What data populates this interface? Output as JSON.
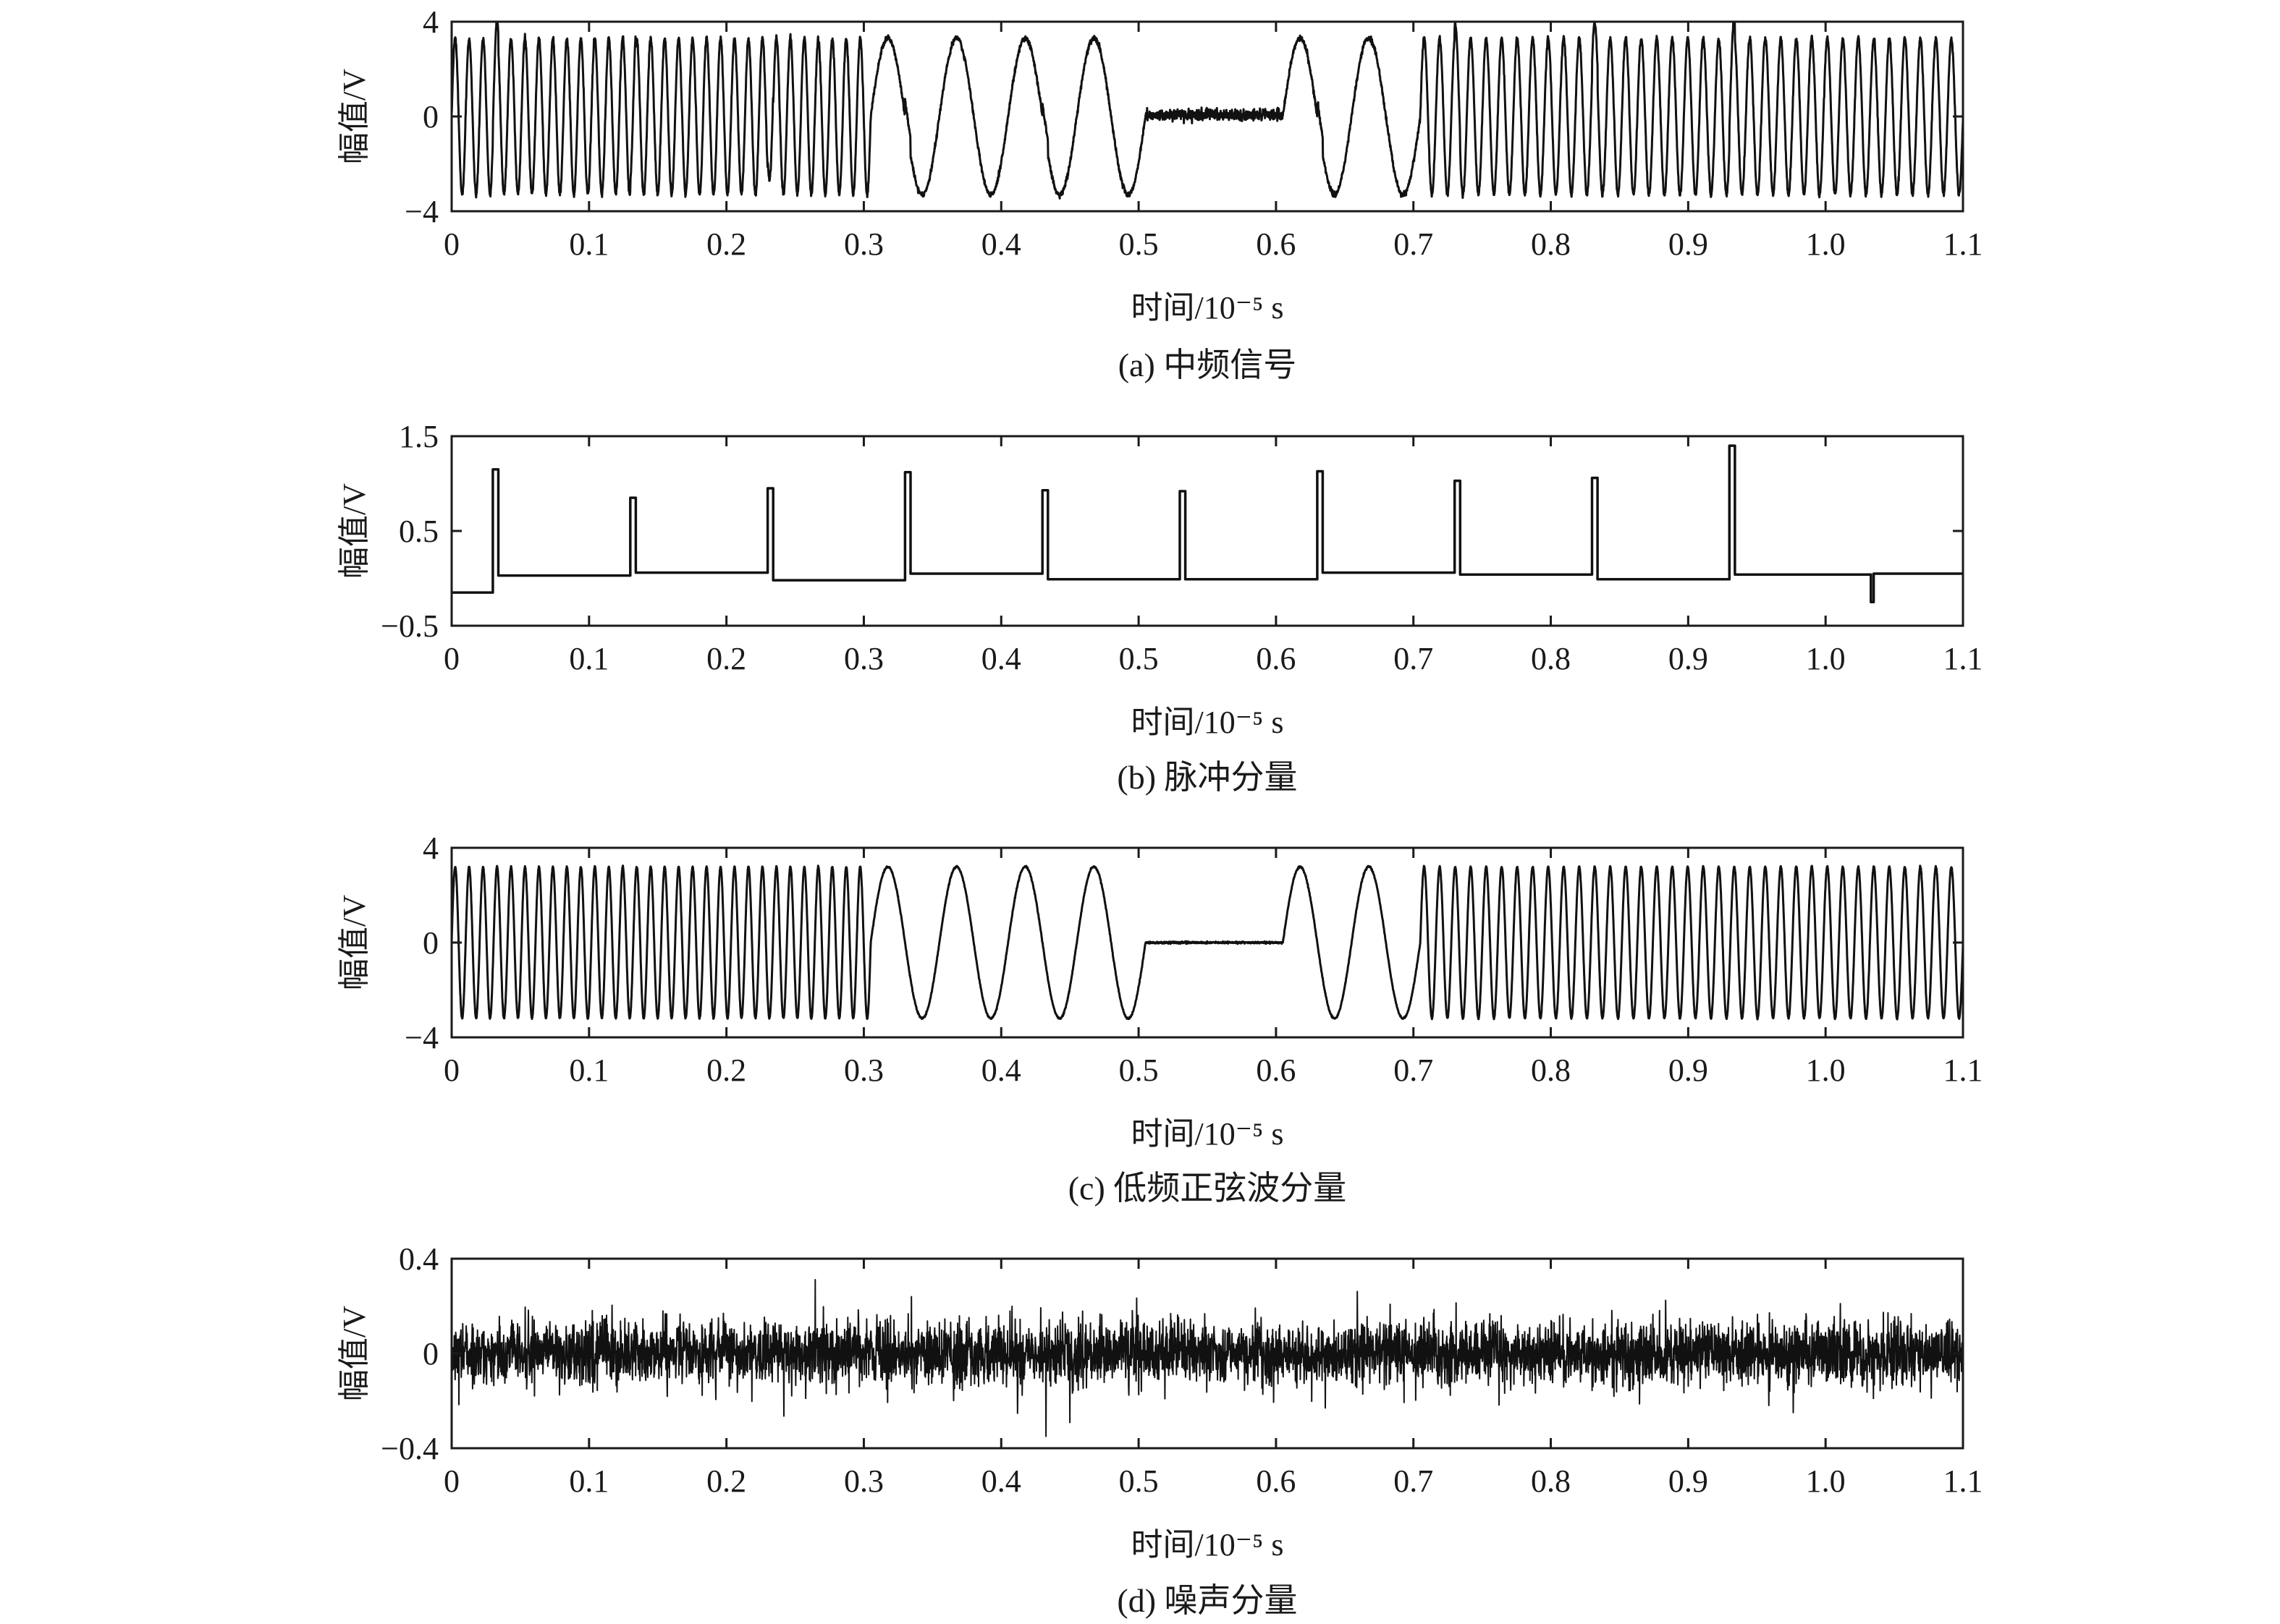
{
  "chart_data": [
    {
      "type": "line",
      "caption": "(a) 中频信号",
      "xlabel": "时间/10⁻⁵ s",
      "ylabel": "幅值/V",
      "xlim": [
        0,
        1.1
      ],
      "ylim": [
        -4,
        4
      ],
      "xticks": [
        "0",
        "0.1",
        "0.2",
        "0.3",
        "0.4",
        "0.5",
        "0.6",
        "0.7",
        "0.8",
        "0.9",
        "1.0",
        "1.1"
      ],
      "yticks": [
        {
          "value": 4,
          "label": "4"
        },
        {
          "value": 0,
          "label": "0"
        },
        {
          "value": -4,
          "label": "−4"
        }
      ],
      "series": [
        {
          "signal": "composite",
          "amplitude": 3.3,
          "silent_interval": [
            0.505,
            0.605
          ],
          "silent_level": 0.05,
          "segments": [
            {
              "start": 0.0,
              "end": 0.305,
              "cycles": 30
            },
            {
              "start": 0.305,
              "end": 0.505,
              "cycles": 4
            },
            {
              "start": 0.605,
              "end": 0.705,
              "cycles": 2
            },
            {
              "start": 0.705,
              "end": 1.1,
              "cycles": 35
            }
          ],
          "pulse_times": [
            0.03,
            0.13,
            0.23,
            0.33,
            0.43,
            0.53,
            0.63,
            0.73,
            0.83,
            0.93
          ],
          "pulse_peaks": [
            1.15,
            0.85,
            0.95,
            1.12,
            0.93,
            0.92,
            1.13,
            1.03,
            1.06,
            1.4
          ],
          "noise_amplitude": 0.12
        }
      ]
    },
    {
      "type": "line",
      "caption": "(b) 脉冲分量",
      "xlabel": "时间/10⁻⁵ s",
      "ylabel": "幅值/V",
      "xlim": [
        0,
        1.1
      ],
      "ylim": [
        -0.5,
        1.5
      ],
      "xticks": [
        "0",
        "0.1",
        "0.2",
        "0.3",
        "0.4",
        "0.5",
        "0.6",
        "0.7",
        "0.8",
        "0.9",
        "1.0",
        "1.1"
      ],
      "yticks": [
        {
          "value": 1.5,
          "label": "1.5"
        },
        {
          "value": 0.5,
          "label": "0.5"
        },
        {
          "value": -0.5,
          "label": "−0.5"
        }
      ],
      "series": [
        {
          "signal": "pulses",
          "initial_level": -0.15,
          "pulse_times": [
            0.03,
            0.13,
            0.23,
            0.33,
            0.43,
            0.53,
            0.63,
            0.73,
            0.83,
            0.93
          ],
          "pulse_peaks": [
            1.15,
            0.85,
            0.95,
            1.12,
            0.93,
            0.92,
            1.13,
            1.03,
            1.06,
            1.4
          ],
          "baseline_levels": [
            0.03,
            0.06,
            -0.02,
            0.05,
            -0.01,
            -0.01,
            0.06,
            0.04,
            -0.01,
            0.04
          ],
          "dip": {
            "x": 1.033,
            "y": -0.25
          },
          "final_level": 0.05
        }
      ]
    },
    {
      "type": "line",
      "caption": "(c) 低频正弦波分量",
      "xlabel": "时间/10⁻⁵ s",
      "ylabel": "幅值/V",
      "xlim": [
        0,
        1.1
      ],
      "ylim": [
        -4,
        4
      ],
      "xticks": [
        "0",
        "0.1",
        "0.2",
        "0.3",
        "0.4",
        "0.5",
        "0.6",
        "0.7",
        "0.8",
        "0.9",
        "1.0",
        "1.1"
      ],
      "yticks": [
        {
          "value": 4,
          "label": "4"
        },
        {
          "value": 0,
          "label": "0"
        },
        {
          "value": -4,
          "label": "−4"
        }
      ],
      "series": [
        {
          "signal": "sine",
          "amplitude": 3.2,
          "silent_interval": [
            0.505,
            0.605
          ],
          "silent_level": 0.0,
          "segments": [
            {
              "start": 0.0,
              "end": 0.305,
              "cycles": 30
            },
            {
              "start": 0.305,
              "end": 0.505,
              "cycles": 4
            },
            {
              "start": 0.605,
              "end": 0.705,
              "cycles": 2
            },
            {
              "start": 0.705,
              "end": 1.1,
              "cycles": 35
            }
          ],
          "noise_amplitude": 0.02
        }
      ]
    },
    {
      "type": "line",
      "caption": "(d) 噪声分量",
      "xlabel": "时间/10⁻⁵ s",
      "ylabel": "幅值/V",
      "xlim": [
        0,
        1.1
      ],
      "ylim": [
        -0.4,
        0.4
      ],
      "xticks": [
        "0",
        "0.1",
        "0.2",
        "0.3",
        "0.4",
        "0.5",
        "0.6",
        "0.7",
        "0.8",
        "0.9",
        "1.0",
        "1.1"
      ],
      "yticks": [
        {
          "value": 0.4,
          "label": "0.4"
        },
        {
          "value": 0,
          "label": "0"
        },
        {
          "value": -0.4,
          "label": "−0.4"
        }
      ],
      "series": [
        {
          "signal": "noise",
          "noise_amplitude": 0.12,
          "peak_amplitude": 0.35
        }
      ]
    }
  ]
}
